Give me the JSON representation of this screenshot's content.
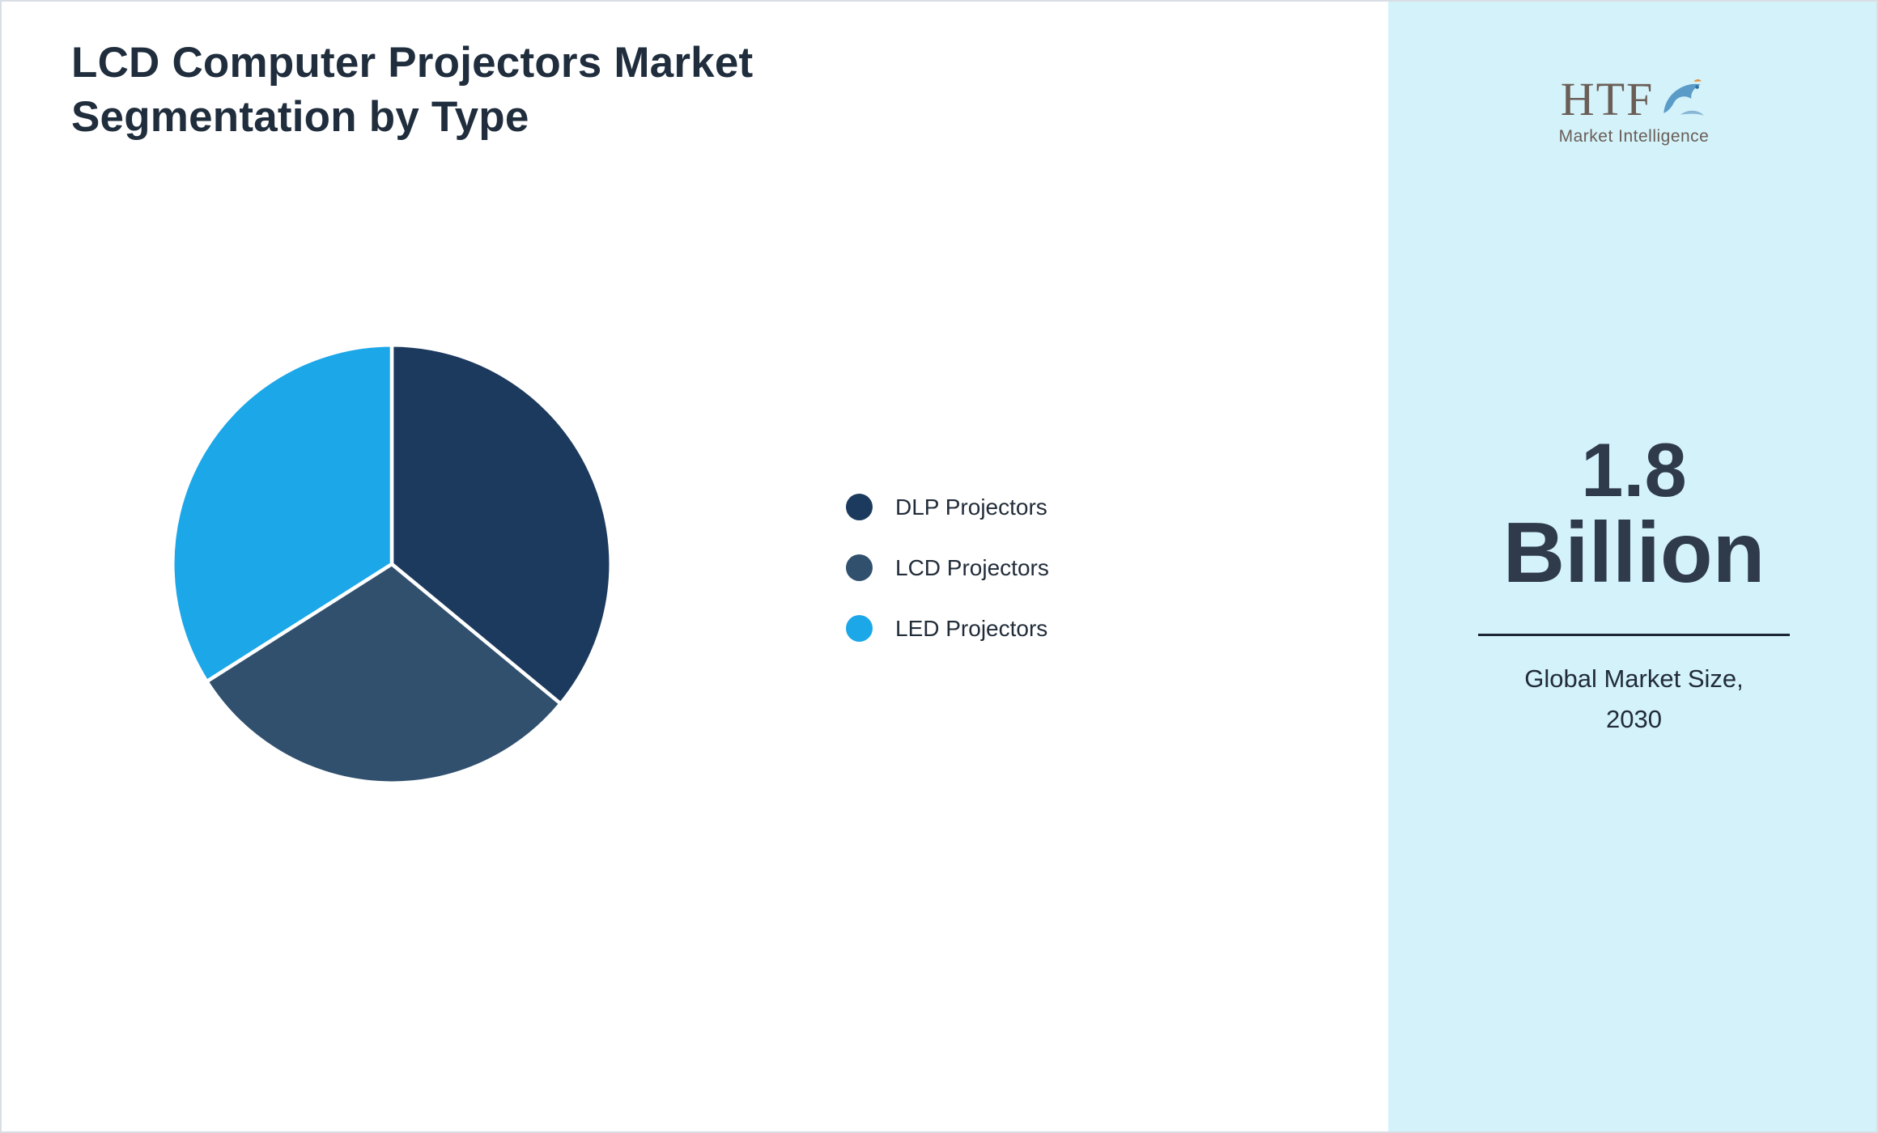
{
  "header": {
    "title_line1": "LCD Computer Projectors Market",
    "title_line2": "Segmentation by Type"
  },
  "chart_data": {
    "type": "pie",
    "title": "LCD Computer Projectors Market Segmentation by Type",
    "labels": [
      "DLP Projectors",
      "LCD Projectors",
      "LED Projectors"
    ],
    "values": [
      36,
      30,
      34
    ],
    "colors": [
      "#1c3a5e",
      "#30506e",
      "#1ba7e8"
    ],
    "start_angle_deg": 0,
    "direction": "clockwise",
    "legend_position": "right",
    "value_note": "shares estimated from slice angles; no data labels shown"
  },
  "sidebar": {
    "background": "#d3f2fa",
    "logo": {
      "text": "HTF",
      "subtext": "Market Intelligence"
    },
    "stat_value_line1": "1.8",
    "stat_value_line2": "Billion",
    "caption_line1": "Global Market Size,",
    "caption_line2": "2030"
  }
}
